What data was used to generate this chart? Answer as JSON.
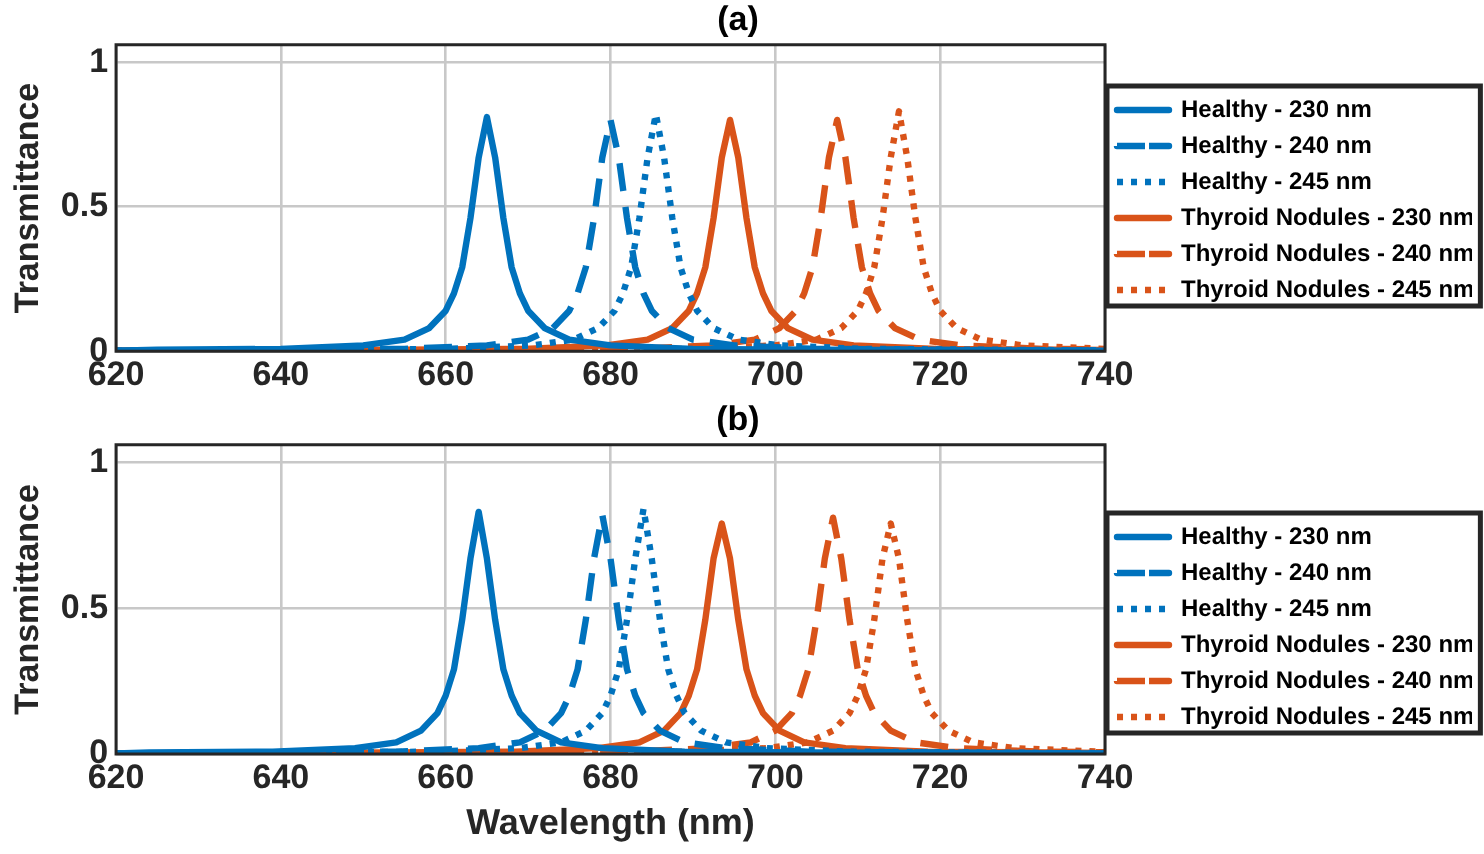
{
  "chart_data": [
    {
      "type": "line",
      "title": "(a)",
      "ylabel": "Transmittance",
      "xlim": [
        620,
        740
      ],
      "xticks": [
        620,
        640,
        660,
        680,
        700,
        720,
        740
      ],
      "ylim": [
        0,
        1.06
      ],
      "yticks": [
        0,
        0.5,
        1
      ],
      "grid": true,
      "legend": "right",
      "marker": "none",
      "series": [
        {
          "name": "Healthy - 230 nm",
          "color": "#0072bd",
          "line_style": "solid",
          "x": [
            620,
            625,
            640,
            650,
            655,
            658,
            660,
            661,
            662,
            663,
            664,
            665,
            666,
            667,
            668,
            669,
            670,
            672,
            675,
            680,
            690,
            705,
            740
          ],
          "values": [
            0.002,
            0.005,
            0.008,
            0.02,
            0.04,
            0.08,
            0.14,
            0.2,
            0.29,
            0.46,
            0.67,
            0.81,
            0.67,
            0.46,
            0.29,
            0.2,
            0.14,
            0.08,
            0.04,
            0.02,
            0.008,
            0.005,
            0.002
          ]
        },
        {
          "name": "Healthy - 240 nm",
          "color": "#0072bd",
          "line_style": "dashed",
          "x": [
            620,
            640,
            655,
            665,
            670,
            673,
            675,
            676,
            677,
            678,
            679,
            680,
            681,
            682,
            683,
            684,
            685,
            687,
            690,
            695,
            705,
            720,
            740
          ],
          "values": [
            0.002,
            0.005,
            0.008,
            0.02,
            0.04,
            0.08,
            0.14,
            0.2,
            0.29,
            0.46,
            0.67,
            0.8,
            0.67,
            0.46,
            0.29,
            0.2,
            0.14,
            0.08,
            0.04,
            0.02,
            0.008,
            0.005,
            0.002
          ]
        },
        {
          "name": "Healthy - 245 nm",
          "color": "#0072bd",
          "line_style": "dotted",
          "x": [
            620,
            645.5,
            660.5,
            670.5,
            675.5,
            678.5,
            680.5,
            681.5,
            682.5,
            683.5,
            684.5,
            685.5,
            686.5,
            687.5,
            688.5,
            689.5,
            690.5,
            692.5,
            695.5,
            700.5,
            710.5,
            725.5,
            740
          ],
          "values": [
            0.002,
            0.005,
            0.008,
            0.02,
            0.04,
            0.08,
            0.14,
            0.2,
            0.29,
            0.46,
            0.67,
            0.82,
            0.67,
            0.46,
            0.29,
            0.2,
            0.14,
            0.08,
            0.04,
            0.02,
            0.008,
            0.005,
            0.003
          ]
        },
        {
          "name": "Thyroid Nodules - 230 nm",
          "color": "#d95319",
          "line_style": "solid",
          "x": [
            620,
            654.5,
            669.5,
            679.5,
            684.5,
            687.5,
            689.5,
            690.5,
            691.5,
            692.5,
            693.5,
            694.5,
            695.5,
            696.5,
            697.5,
            698.5,
            699.5,
            701.5,
            704.5,
            709.5,
            719.5,
            734.5,
            740
          ],
          "values": [
            0.002,
            0.005,
            0.008,
            0.02,
            0.04,
            0.08,
            0.14,
            0.2,
            0.29,
            0.46,
            0.67,
            0.8,
            0.67,
            0.46,
            0.29,
            0.2,
            0.14,
            0.08,
            0.04,
            0.02,
            0.008,
            0.005,
            0.004
          ]
        },
        {
          "name": "Thyroid Nodules - 240 nm",
          "color": "#d95319",
          "line_style": "dashed",
          "x": [
            620,
            667.5,
            682.5,
            692.5,
            697.5,
            700.5,
            702.5,
            703.5,
            704.5,
            705.5,
            706.5,
            707.5,
            708.5,
            709.5,
            710.5,
            711.5,
            712.5,
            714.5,
            717.5,
            722.5,
            732.5,
            740
          ],
          "values": [
            0.002,
            0.005,
            0.008,
            0.02,
            0.04,
            0.08,
            0.14,
            0.2,
            0.29,
            0.46,
            0.67,
            0.8,
            0.67,
            0.46,
            0.29,
            0.2,
            0.14,
            0.08,
            0.04,
            0.02,
            0.008,
            0.006
          ]
        },
        {
          "name": "Thyroid Nodules - 245 nm",
          "color": "#d95319",
          "line_style": "dotted",
          "x": [
            620,
            675,
            690,
            700,
            705,
            708,
            710,
            711,
            712,
            713,
            714,
            715,
            716,
            717,
            718,
            719,
            720,
            722,
            725,
            730,
            740
          ],
          "values": [
            0.002,
            0.005,
            0.008,
            0.02,
            0.04,
            0.08,
            0.14,
            0.2,
            0.29,
            0.46,
            0.67,
            0.83,
            0.67,
            0.46,
            0.29,
            0.2,
            0.14,
            0.08,
            0.04,
            0.02,
            0.008
          ]
        }
      ]
    },
    {
      "type": "line",
      "title": "(b)",
      "xlabel": "Wavelength (nm)",
      "ylabel": "Transmittance",
      "xlim": [
        620,
        740
      ],
      "xticks": [
        620,
        640,
        660,
        680,
        700,
        720,
        740
      ],
      "ylim": [
        0,
        1.06
      ],
      "yticks": [
        0,
        0.5,
        1
      ],
      "grid": true,
      "legend": "right",
      "marker": "none",
      "series": [
        {
          "name": "Healthy - 230 nm",
          "color": "#0072bd",
          "line_style": "solid",
          "x": [
            620,
            624,
            639,
            649,
            654,
            657,
            659,
            660,
            661,
            662,
            663,
            664,
            665,
            666,
            667,
            668,
            669,
            671,
            674,
            679,
            689,
            704,
            740
          ],
          "values": [
            0.002,
            0.005,
            0.008,
            0.02,
            0.04,
            0.08,
            0.14,
            0.2,
            0.29,
            0.46,
            0.67,
            0.83,
            0.67,
            0.46,
            0.29,
            0.2,
            0.14,
            0.08,
            0.04,
            0.02,
            0.008,
            0.005,
            0.002
          ]
        },
        {
          "name": "Healthy - 240 nm",
          "color": "#0072bd",
          "line_style": "dashed",
          "x": [
            620,
            639,
            654,
            664,
            669,
            672,
            674,
            675,
            676,
            677,
            678,
            679,
            680,
            681,
            682,
            683,
            684,
            686,
            689,
            694,
            704,
            719,
            740
          ],
          "values": [
            0.002,
            0.005,
            0.008,
            0.02,
            0.04,
            0.08,
            0.14,
            0.2,
            0.29,
            0.46,
            0.67,
            0.82,
            0.67,
            0.46,
            0.29,
            0.2,
            0.14,
            0.08,
            0.04,
            0.02,
            0.008,
            0.005,
            0.002
          ]
        },
        {
          "name": "Healthy - 245 nm",
          "color": "#0072bd",
          "line_style": "dotted",
          "x": [
            620,
            644,
            659,
            669,
            674,
            677,
            679,
            680,
            681,
            682,
            683,
            684,
            685,
            686,
            687,
            688,
            689,
            691,
            694,
            699,
            709,
            724,
            740
          ],
          "values": [
            0.002,
            0.005,
            0.008,
            0.02,
            0.04,
            0.08,
            0.14,
            0.2,
            0.29,
            0.46,
            0.67,
            0.84,
            0.67,
            0.46,
            0.29,
            0.2,
            0.14,
            0.08,
            0.04,
            0.02,
            0.008,
            0.005,
            0.003
          ]
        },
        {
          "name": "Thyroid Nodules - 230 nm",
          "color": "#d95319",
          "line_style": "solid",
          "x": [
            620,
            653.5,
            668.5,
            678.5,
            683.5,
            686.5,
            688.5,
            689.5,
            690.5,
            691.5,
            692.5,
            693.5,
            694.5,
            695.5,
            696.5,
            697.5,
            698.5,
            700.5,
            703.5,
            708.5,
            718.5,
            733.5,
            740
          ],
          "values": [
            0.002,
            0.005,
            0.008,
            0.02,
            0.04,
            0.08,
            0.14,
            0.2,
            0.29,
            0.46,
            0.67,
            0.79,
            0.67,
            0.46,
            0.29,
            0.2,
            0.14,
            0.08,
            0.04,
            0.02,
            0.008,
            0.005,
            0.004
          ]
        },
        {
          "name": "Thyroid Nodules - 240 nm",
          "color": "#d95319",
          "line_style": "dashed",
          "x": [
            620,
            667,
            682,
            692,
            697,
            700,
            702,
            703,
            704,
            705,
            706,
            707,
            708,
            709,
            710,
            711,
            712,
            714,
            717,
            722,
            732,
            740
          ],
          "values": [
            0.002,
            0.005,
            0.008,
            0.02,
            0.04,
            0.08,
            0.14,
            0.2,
            0.29,
            0.46,
            0.67,
            0.81,
            0.67,
            0.46,
            0.29,
            0.2,
            0.14,
            0.08,
            0.04,
            0.02,
            0.008,
            0.006
          ]
        },
        {
          "name": "Thyroid Nodules - 245 nm",
          "color": "#d95319",
          "line_style": "dotted",
          "x": [
            620,
            674,
            689,
            699,
            704,
            707,
            709,
            710,
            711,
            712,
            713,
            714,
            715,
            716,
            717,
            718,
            719,
            721,
            724,
            729,
            740
          ],
          "values": [
            0.002,
            0.005,
            0.008,
            0.02,
            0.04,
            0.08,
            0.14,
            0.2,
            0.29,
            0.46,
            0.67,
            0.79,
            0.67,
            0.46,
            0.29,
            0.2,
            0.14,
            0.08,
            0.04,
            0.02,
            0.007
          ]
        }
      ]
    }
  ]
}
